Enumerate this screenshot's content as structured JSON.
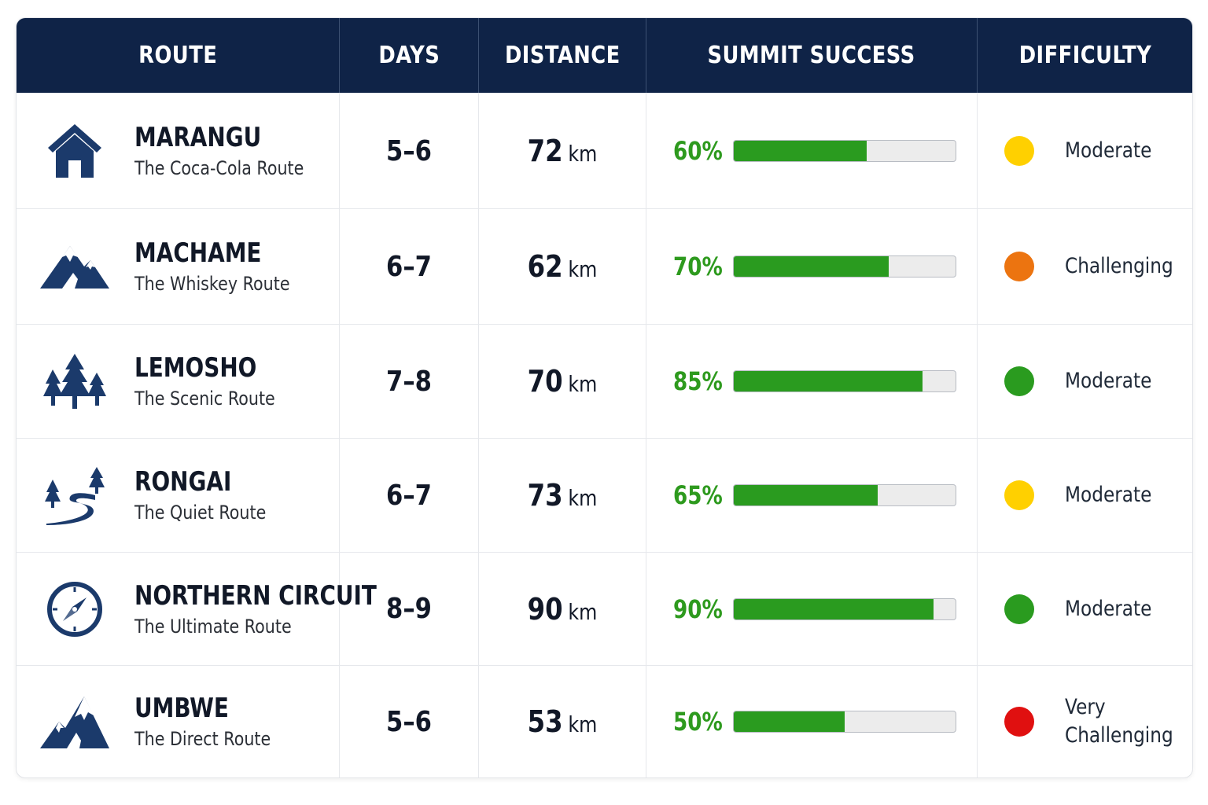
{
  "header": {
    "route": "ROUTE",
    "days": "DAYS",
    "distance": "DISTANCE",
    "success": "SUMMIT SUCCESS",
    "difficulty": "DIFFICULTY"
  },
  "colors": {
    "header_bg": "#0f2347",
    "icon": "#1b3a6b",
    "success_text": "#2e9a1e",
    "bar_fill": "#2a9b1f",
    "bar_track": "#ececec"
  },
  "rows": [
    {
      "icon": "house-icon",
      "name": "MARANGU",
      "subtitle": "The Coca-Cola Route",
      "days": "5–6",
      "distance": "72",
      "unit": "km",
      "success": "60%",
      "success_value": 60,
      "difficulty": "Moderate",
      "dot_color": "#ffd000"
    },
    {
      "icon": "mountain-icon",
      "name": "MACHAME",
      "subtitle": "The Whiskey Route",
      "days": "6–7",
      "distance": "62",
      "unit": "km",
      "success": "70%",
      "success_value": 70,
      "difficulty": "Challenging",
      "dot_color": "#ec7410"
    },
    {
      "icon": "pine-trees-icon",
      "name": "LEMOSHO",
      "subtitle": "The Scenic Route",
      "days": "7–8",
      "distance": "70",
      "unit": "km",
      "success": "85%",
      "success_value": 85,
      "difficulty": "Moderate",
      "dot_color": "#2a9b1f"
    },
    {
      "icon": "winding-path-icon",
      "name": "RONGAI",
      "subtitle": "The Quiet Route",
      "days": "6–7",
      "distance": "73",
      "unit": "km",
      "success": "65%",
      "success_value": 65,
      "difficulty": "Moderate",
      "dot_color": "#ffd000"
    },
    {
      "icon": "compass-icon",
      "name": "NORTHERN CIRCUIT",
      "subtitle": "The Ultimate Route",
      "days": "8–9",
      "distance": "90",
      "unit": "km",
      "success": "90%",
      "success_value": 90,
      "difficulty": "Moderate",
      "dot_color": "#2a9b1f"
    },
    {
      "icon": "steep-peak-icon",
      "name": "UMBWE",
      "subtitle": "The Direct Route",
      "days": "5–6",
      "distance": "53",
      "unit": "km",
      "success": "50%",
      "success_value": 50,
      "difficulty": "Very Challenging",
      "dot_color": "#e01010"
    }
  ]
}
